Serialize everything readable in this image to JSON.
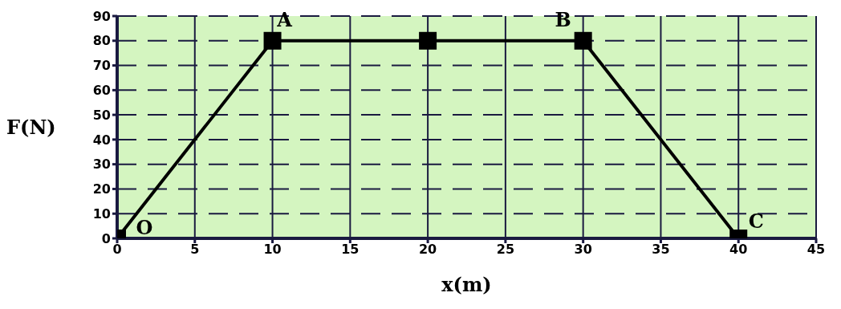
{
  "chart_data": {
    "type": "line",
    "xlabel": "x(m)",
    "ylabel": "F(N)",
    "x": [
      0,
      10,
      20,
      30,
      40
    ],
    "series": [
      {
        "color": "#000000",
        "values": [
          0,
          80,
          80,
          80,
          0
        ]
      }
    ],
    "xlim": [
      0,
      45
    ],
    "xticks": [
      0,
      5,
      10,
      15,
      20,
      25,
      30,
      35,
      40,
      45
    ],
    "ylim": [
      0,
      90
    ],
    "yticks": [
      0,
      10,
      20,
      30,
      40,
      50,
      60,
      70,
      80,
      90
    ],
    "grid": true,
    "marker": "square",
    "line_style": "solid",
    "annotations": [
      {
        "text": "O",
        "x": 0,
        "y": 0
      },
      {
        "text": "A",
        "x": 10,
        "y": 80
      },
      {
        "text": "B",
        "x": 30,
        "y": 80
      },
      {
        "text": "C",
        "x": 40,
        "y": 0
      }
    ]
  }
}
